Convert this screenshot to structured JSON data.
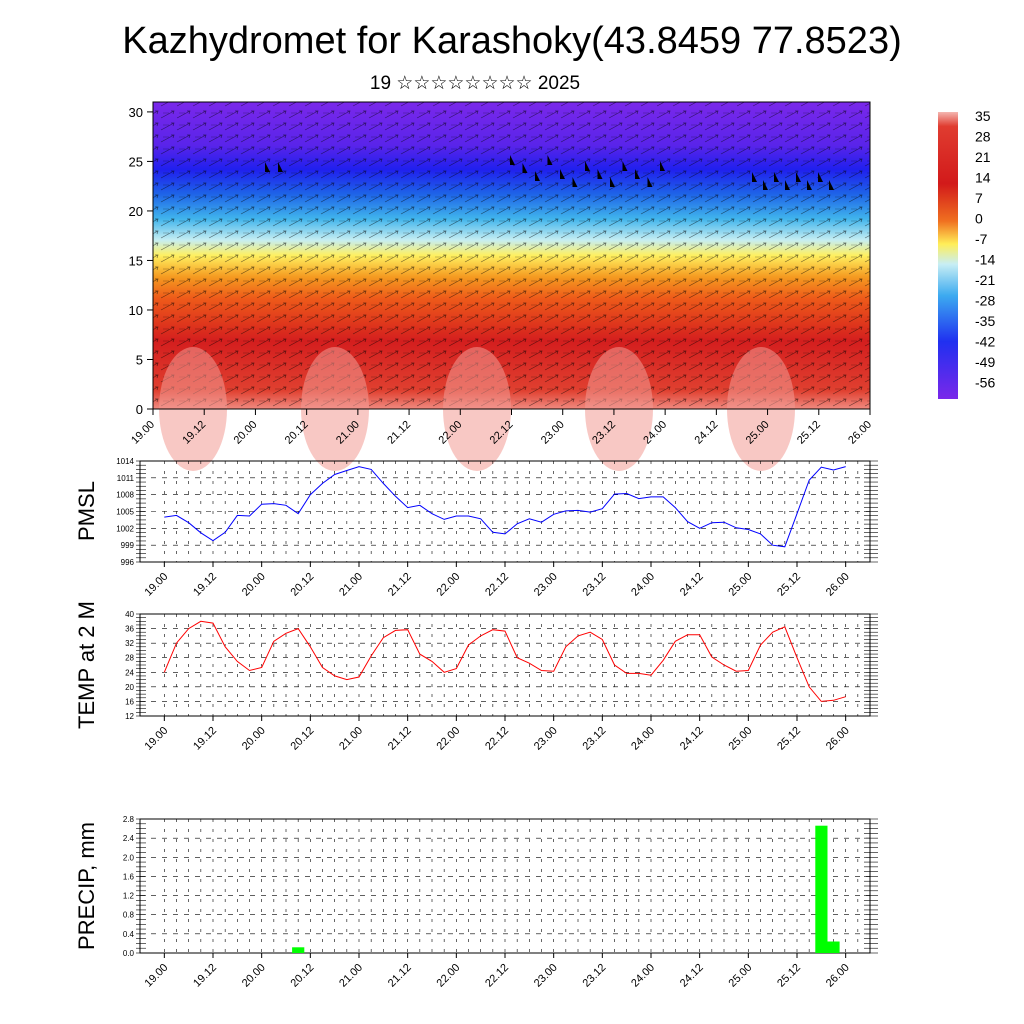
{
  "header": {
    "title": "Kazhydromet for Karashoky(43.8459 77.8523)",
    "subtitle": "19 ☆☆☆☆☆☆☆☆ 2025"
  },
  "colors": {
    "pmsl_line": "#0000ff",
    "temp_line": "#ff0000",
    "precip_bar": "#00ff00"
  },
  "chart_data": [
    {
      "type": "heatmap",
      "name": "cross-section",
      "y_ticks": [
        "0",
        "5",
        "10",
        "15",
        "20",
        "25",
        "30"
      ],
      "ylim": [
        0,
        31
      ],
      "x_tick_labels": [
        "19.00",
        "19.12",
        "20.00",
        "20.12",
        "21.00",
        "21.12",
        "22.00",
        "22.12",
        "23.00",
        "23.12",
        "24.00",
        "24.12",
        "25.00",
        "25.12",
        "26.00"
      ],
      "colorbar_labels": [
        "35",
        "28",
        "21",
        "14",
        "7",
        "0",
        "-7",
        "-14",
        "-21",
        "-28",
        "-35",
        "-42",
        "-49",
        "-56"
      ]
    },
    {
      "type": "line",
      "name": "pmsl",
      "ylabel": "PMSL",
      "ylim": [
        996,
        1014
      ],
      "y_ticks": [
        "996",
        "999",
        "1002",
        "1005",
        "1008",
        "1011",
        "1014"
      ],
      "x_tick_labels": [
        "19.00",
        "19.12",
        "20.00",
        "20.12",
        "21.00",
        "21.12",
        "22.00",
        "22.12",
        "23.00",
        "23.12",
        "24.00",
        "24.12",
        "25.00",
        "25.12",
        "26.00"
      ],
      "x": [
        0,
        3,
        6,
        9,
        12,
        15,
        18,
        21,
        24,
        27,
        30,
        33,
        36,
        39,
        42,
        45,
        48,
        51,
        54,
        57,
        60,
        63,
        66,
        69,
        72,
        75,
        78,
        81,
        84,
        87,
        90,
        93,
        96,
        99,
        102,
        105,
        108,
        111,
        114,
        117,
        120,
        123,
        126,
        129,
        132,
        135,
        138,
        141,
        144,
        147,
        150,
        153,
        156,
        159,
        162,
        165,
        168
      ],
      "values": [
        1004.0,
        1004.3,
        1003.0,
        1001.2,
        999.8,
        1001.3,
        1004.3,
        1004.2,
        1006.3,
        1006.4,
        1006.1,
        1004.6,
        1008.0,
        1010.0,
        1011.6,
        1012.3,
        1013.0,
        1012.5,
        1010.0,
        1007.7,
        1005.7,
        1006.1,
        1004.6,
        1003.6,
        1004.2,
        1004.2,
        1003.7,
        1001.3,
        1001.0,
        1002.8,
        1003.7,
        1003.1,
        1004.5,
        1005.1,
        1005.2,
        1004.9,
        1005.5,
        1008.1,
        1008.2,
        1007.3,
        1007.6,
        1007.6,
        1005.7,
        1003.2,
        1002.0,
        1003.0,
        1003.1,
        1002.1,
        1001.8,
        1001.0,
        999.0,
        998.7,
        1004.6,
        1010.6,
        1012.9,
        1012.4,
        1013.0
      ]
    },
    {
      "type": "line",
      "name": "temperature",
      "ylabel": "TEMP at 2 M",
      "ylim": [
        12,
        40
      ],
      "y_ticks": [
        "12",
        "16",
        "20",
        "24",
        "28",
        "32",
        "36",
        "40"
      ],
      "x_tick_labels": [
        "19.00",
        "19.12",
        "20.00",
        "20.12",
        "21.00",
        "21.12",
        "22.00",
        "22.12",
        "23.00",
        "23.12",
        "24.00",
        "24.12",
        "25.00",
        "25.12",
        "26.00"
      ],
      "x": [
        0,
        3,
        6,
        9,
        12,
        15,
        18,
        21,
        24,
        27,
        30,
        33,
        36,
        39,
        42,
        45,
        48,
        51,
        54,
        57,
        60,
        63,
        66,
        69,
        72,
        75,
        78,
        81,
        84,
        87,
        90,
        93,
        96,
        99,
        102,
        105,
        108,
        111,
        114,
        117,
        120,
        123,
        126,
        129,
        132,
        135,
        138,
        141,
        144,
        147,
        150,
        153,
        156,
        159,
        162,
        165,
        168
      ],
      "values": [
        24.0,
        32.0,
        36.0,
        38.0,
        37.5,
        31.0,
        27.0,
        24.5,
        25.3,
        32.5,
        34.7,
        36.0,
        31.0,
        25.3,
        23.0,
        22.0,
        22.7,
        28.5,
        33.5,
        35.5,
        35.7,
        29.0,
        27.0,
        24.0,
        25.0,
        31.5,
        34.0,
        35.7,
        35.3,
        28.0,
        26.5,
        24.5,
        24.3,
        31.0,
        34.0,
        35.0,
        33.0,
        26.0,
        23.7,
        23.7,
        23.2,
        27.3,
        32.5,
        34.3,
        34.3,
        28.2,
        26.0,
        24.3,
        24.5,
        31.5,
        35.0,
        36.5,
        28.0,
        20.0,
        16.0,
        16.3,
        17.3
      ]
    },
    {
      "type": "bar",
      "name": "precipitation",
      "ylabel": "PRECIP, mm",
      "ylim": [
        0,
        2.8
      ],
      "y_ticks": [
        "0.0",
        "0.4",
        "0.8",
        "1.2",
        "1.6",
        "2.0",
        "2.4",
        "2.8"
      ],
      "x_tick_labels": [
        "19.00",
        "19.12",
        "20.00",
        "20.12",
        "21.00",
        "21.12",
        "22.00",
        "22.12",
        "23.00",
        "23.12",
        "24.00",
        "24.12",
        "25.00",
        "25.12",
        "26.00"
      ],
      "bars": [
        {
          "x": 33,
          "value": 0.12
        },
        {
          "x": 162,
          "value": 2.66
        },
        {
          "x": 165,
          "value": 0.24
        }
      ]
    }
  ]
}
